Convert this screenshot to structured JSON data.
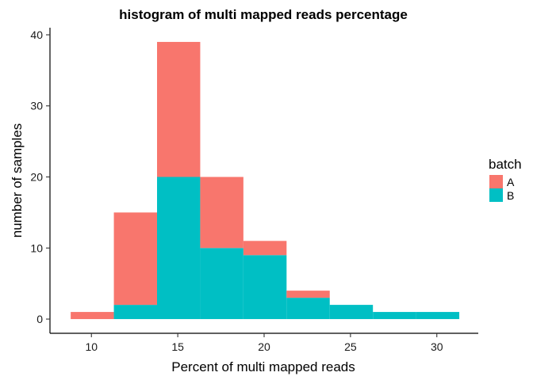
{
  "chart_data": {
    "type": "bar",
    "subtype": "stacked-histogram",
    "title": "histogram of multi mapped reads percentage",
    "xlabel": "Percent of multi mapped reads",
    "ylabel": "number of samples",
    "xlim": [
      7.6,
      32.4
    ],
    "ylim": [
      -2,
      41
    ],
    "xticks": [
      10,
      15,
      20,
      25,
      30
    ],
    "yticks": [
      0,
      10,
      20,
      30,
      40
    ],
    "grid": false,
    "legend": {
      "title": "batch",
      "position": "right"
    },
    "bins": [
      {
        "x0": 8.8,
        "x1": 11.3,
        "A": 1,
        "B": 0
      },
      {
        "x0": 11.3,
        "x1": 13.8,
        "A": 13,
        "B": 2
      },
      {
        "x0": 13.8,
        "x1": 16.3,
        "A": 19,
        "B": 20
      },
      {
        "x0": 16.3,
        "x1": 18.8,
        "A": 10,
        "B": 10
      },
      {
        "x0": 18.8,
        "x1": 21.3,
        "A": 2,
        "B": 9
      },
      {
        "x0": 21.3,
        "x1": 23.8,
        "A": 1,
        "B": 3
      },
      {
        "x0": 23.8,
        "x1": 26.3,
        "A": 0,
        "B": 2
      },
      {
        "x0": 26.3,
        "x1": 28.8,
        "A": 0,
        "B": 1
      },
      {
        "x0": 28.8,
        "x1": 31.3,
        "A": 0,
        "B": 1
      }
    ],
    "series": [
      {
        "name": "A",
        "color": "#F8766D"
      },
      {
        "name": "B",
        "color": "#00BFC4"
      }
    ]
  }
}
